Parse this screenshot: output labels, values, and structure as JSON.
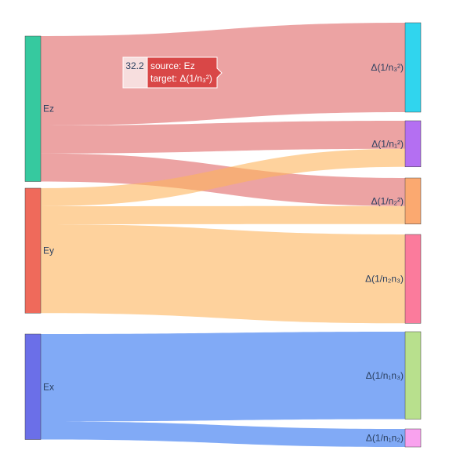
{
  "chart_data": {
    "type": "sankey",
    "colors": {
      "node_Ez": "#36c99f",
      "node_Ey": "#ef6a5b",
      "node_Ex": "#6b6fe8",
      "node_n3sq": "#30d5ee",
      "node_n1sq": "#b46ff2",
      "node_n2sq": "#fba970",
      "node_n2n3": "#fb7b9c",
      "node_n1n3": "#b8e08d",
      "node_n1n2": "#f9a2ee",
      "link_Ez": "#dc5757",
      "link_Ey": "#fdb45c",
      "link_Ex": "#4b86f2"
    },
    "nodes": [
      {
        "id": "Ez",
        "label": "Ez",
        "side": "source"
      },
      {
        "id": "Ey",
        "label": "Ey",
        "side": "source"
      },
      {
        "id": "Ex",
        "label": "Ex",
        "side": "source"
      },
      {
        "id": "n3sq",
        "label": "Δ(1/n₃²)",
        "side": "target"
      },
      {
        "id": "n1sq",
        "label": "Δ(1/n₁²)",
        "side": "target"
      },
      {
        "id": "n2sq",
        "label": "Δ(1/n₂²)",
        "side": "target"
      },
      {
        "id": "n2n3",
        "label": "Δ(1/n₂n₃)",
        "side": "target"
      },
      {
        "id": "n1n3",
        "label": "Δ(1/n₁n₃)",
        "side": "target"
      },
      {
        "id": "n1n2",
        "label": "Δ(1/n₁n₂)",
        "side": "target"
      }
    ],
    "links": [
      {
        "source": "Ez",
        "target": "n3sq",
        "value": 32.2
      },
      {
        "source": "Ez",
        "target": "n1sq",
        "value": 10.1
      },
      {
        "source": "Ez",
        "target": "n2sq",
        "value": 10.1
      },
      {
        "source": "Ey",
        "target": "n1sq",
        "value": 6.5
      },
      {
        "source": "Ey",
        "target": "n2sq",
        "value": 6.5
      },
      {
        "source": "Ey",
        "target": "n2n3",
        "value": 32.0
      },
      {
        "source": "Ex",
        "target": "n1n3",
        "value": 31.5
      },
      {
        "source": "Ex",
        "target": "n1n2",
        "value": 6.5
      }
    ]
  },
  "tooltip": {
    "value": "32.2",
    "source_line": "source: Ez",
    "target_line": "target: Δ(1/n₃²)"
  }
}
